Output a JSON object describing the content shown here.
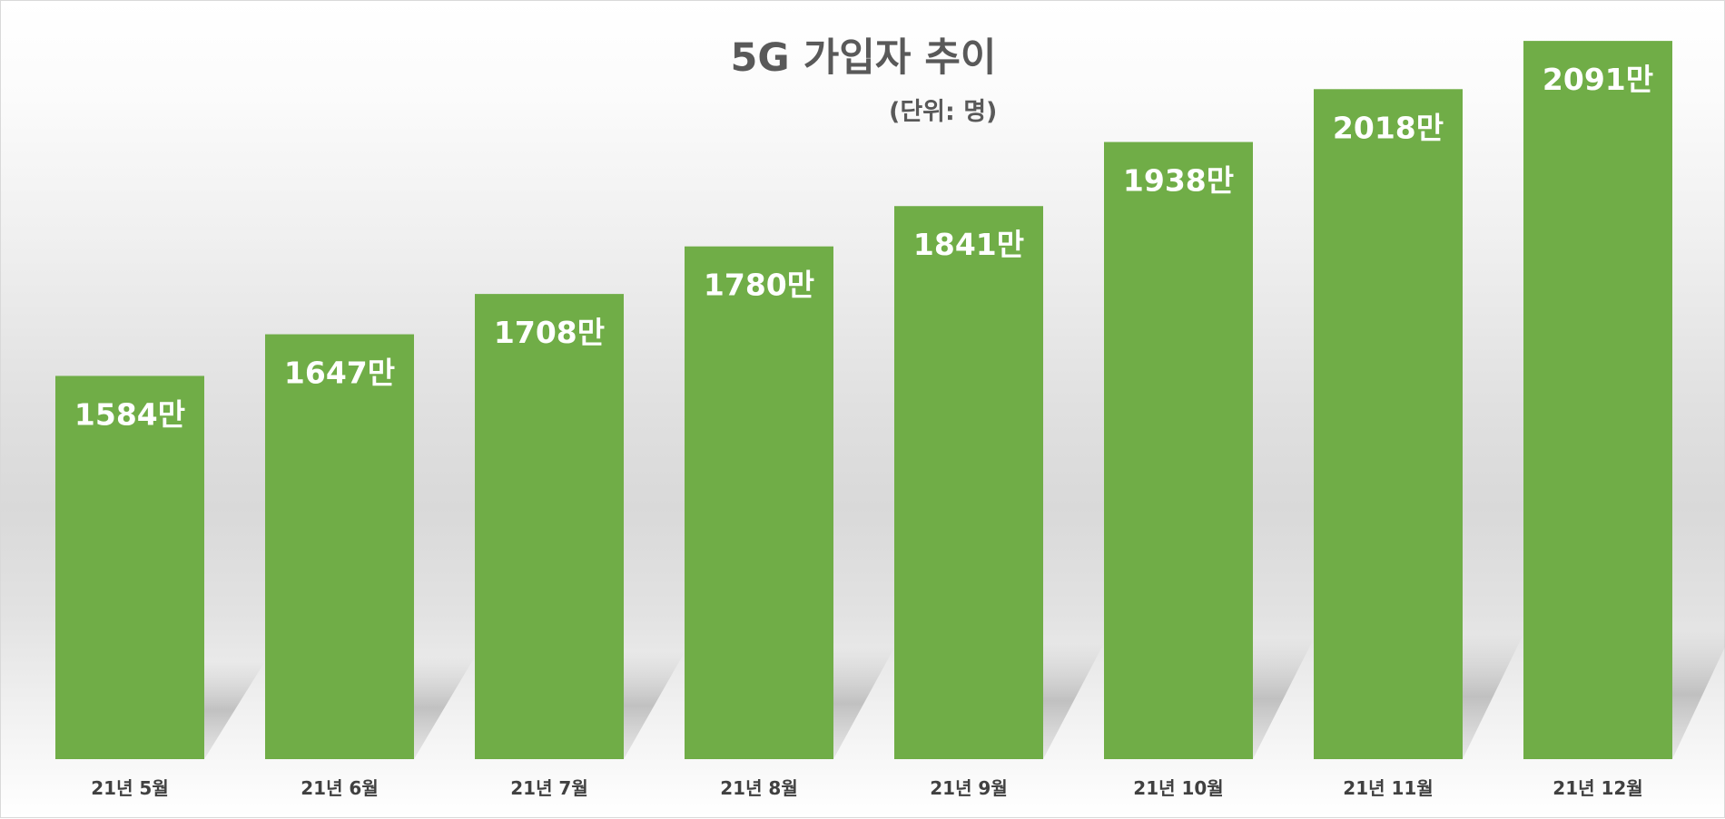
{
  "chart_data": {
    "type": "bar",
    "title": "5G 가입자 추이",
    "subtitle": "(단위: 명)",
    "categories": [
      "21년 5월",
      "21년 6월",
      "21년 7월",
      "21년 8월",
      "21년 9월",
      "21년 10월",
      "21년 11월",
      "21년 12월"
    ],
    "values": [
      1584,
      1647,
      1708,
      1780,
      1841,
      1938,
      2018,
      2091
    ],
    "data_labels": [
      "1584만",
      "1647만",
      "1708만",
      "1780만",
      "1841만",
      "1938만",
      "2018만",
      "2091만"
    ],
    "value_unit": "만",
    "xlabel": "",
    "ylabel": "",
    "ylim": [
      0,
      2200
    ],
    "grid": false,
    "legend": "none",
    "colors": {
      "bar": "#70ad47",
      "text": "#595959",
      "data_label": "#ffffff"
    }
  }
}
